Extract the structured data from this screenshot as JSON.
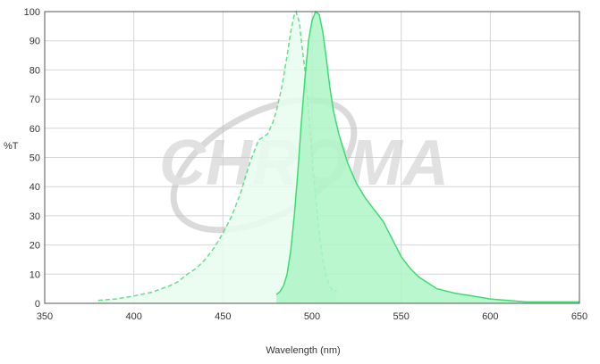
{
  "watermark": {
    "text": "CHROMA"
  },
  "chart_data": {
    "type": "area",
    "xlabel": "Wavelength (nm)",
    "ylabel": "%T",
    "xlim": [
      350,
      650
    ],
    "ylim": [
      0,
      100
    ],
    "xticks": [
      350,
      400,
      450,
      500,
      550,
      600,
      650
    ],
    "yticks": [
      0,
      10,
      20,
      30,
      40,
      50,
      60,
      70,
      80,
      90,
      100
    ],
    "grid": true,
    "legend": "none",
    "series": [
      {
        "role": "excitation",
        "fill": "#e8fbee",
        "stroke": "#5ee38a",
        "dashed": true,
        "x": [
          380,
          390,
          400,
          410,
          420,
          425,
          430,
          435,
          440,
          445,
          450,
          455,
          460,
          465,
          470,
          475,
          478,
          480,
          483,
          486,
          488,
          490,
          491,
          492,
          493,
          494,
          496,
          498,
          500,
          502,
          504,
          506,
          508,
          510,
          512,
          514
        ],
        "y": [
          1,
          1.5,
          2.5,
          3.8,
          6,
          7.5,
          10,
          12,
          15,
          19,
          24,
          30,
          38,
          48,
          56,
          58,
          62,
          66,
          74,
          85,
          93,
          99,
          100,
          98,
          96,
          90,
          80,
          66,
          50,
          36,
          24,
          15,
          9,
          6,
          4,
          4.5
        ]
      },
      {
        "role": "emission",
        "fill": "#aef5c6",
        "stroke": "#3ddb73",
        "dashed": false,
        "x": [
          480,
          482,
          484,
          486,
          488,
          490,
          492,
          494,
          496,
          498,
          500,
          502,
          504,
          506,
          508,
          510,
          512,
          515,
          518,
          520,
          525,
          530,
          535,
          540,
          545,
          550,
          555,
          560,
          565,
          570,
          580,
          590,
          600,
          610,
          620,
          630,
          640,
          650
        ],
        "y": [
          3,
          4,
          6,
          10,
          18,
          30,
          45,
          62,
          77,
          90,
          97,
          100,
          99,
          93,
          84,
          74,
          66,
          58,
          52,
          48,
          41,
          36,
          32,
          28,
          22,
          16,
          12,
          9,
          7,
          5,
          3.5,
          2.5,
          1.5,
          1,
          0.5,
          0.5,
          0.5,
          0.5
        ]
      }
    ]
  }
}
